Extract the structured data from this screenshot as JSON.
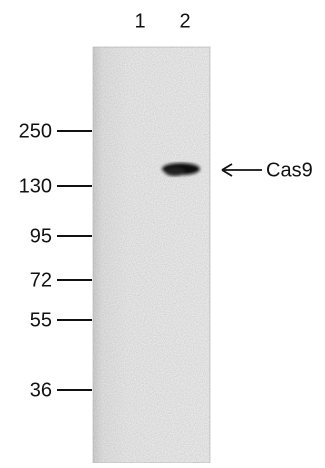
{
  "lanes": [
    "1",
    "2"
  ],
  "markers": [
    250,
    130,
    95,
    72,
    55,
    36
  ],
  "band_label": "Cas9"
}
